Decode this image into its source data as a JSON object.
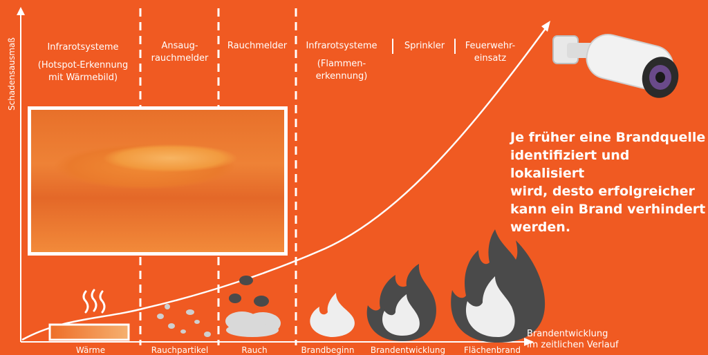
{
  "y_axis_label": "Schadensausmaß",
  "x_axis_label": [
    "Brandentwicklung",
    "im zeitlichen Verlauf"
  ],
  "detection_methods": [
    {
      "lines": [
        "Infrarotsysteme"
      ],
      "sub": [
        "(Hotspot-Erkennung",
        "mit Wärmebild)"
      ]
    },
    {
      "lines": [
        "Ansaug-",
        "rauchmelder"
      ]
    },
    {
      "lines": [
        "Rauchmelder"
      ]
    },
    {
      "lines": [
        "Infrarotsysteme"
      ],
      "sub": [
        "(Flammen-",
        "erkennung)"
      ]
    },
    {
      "lines": [
        "Sprinkler"
      ]
    },
    {
      "lines": [
        "Feuerwehr-",
        "einsatz"
      ]
    }
  ],
  "stages": [
    "Wärme",
    "Rauchpartikel",
    "Rauch",
    "Brandbeginn",
    "Brandentwicklung",
    "Flächenbrand"
  ],
  "message": [
    "Je früher eine Brandquelle",
    "identifiziert und lokalisiert",
    "wird, desto erfolgreicher",
    "kann ein Brand verhindert",
    "werden."
  ],
  "colors": {
    "background": "#f05a22",
    "foreground": "#ffffff",
    "flame_dark": "#4a4a4a",
    "flame_light": "#f2f2f2"
  }
}
